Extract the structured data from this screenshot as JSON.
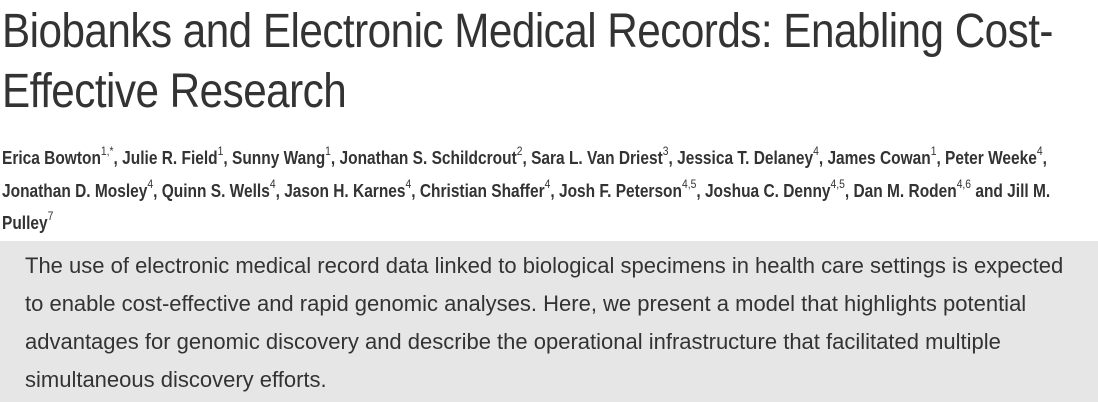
{
  "article": {
    "title": "Biobanks and Electronic Medical Records: Enabling Cost-Effective Research",
    "authors": [
      {
        "name": "Erica Bowton",
        "sup": "1,*"
      },
      {
        "name": "Julie R. Field",
        "sup": "1"
      },
      {
        "name": "Sunny Wang",
        "sup": "1"
      },
      {
        "name": "Jonathan S. Schildcrout",
        "sup": "2"
      },
      {
        "name": "Sara L. Van Driest",
        "sup": "3"
      },
      {
        "name": "Jessica T. Delaney",
        "sup": "4"
      },
      {
        "name": "James Cowan",
        "sup": "1"
      },
      {
        "name": "Peter Weeke",
        "sup": "4"
      },
      {
        "name": "Jonathan D. Mosley",
        "sup": "4"
      },
      {
        "name": "Quinn S. Wells",
        "sup": "4"
      },
      {
        "name": "Jason H. Karnes",
        "sup": "4"
      },
      {
        "name": "Christian Shaffer",
        "sup": "4"
      },
      {
        "name": "Josh F. Peterson",
        "sup": "4,5"
      },
      {
        "name": "Joshua C. Denny",
        "sup": "4,5"
      },
      {
        "name": "Dan M. Roden",
        "sup": "4,6"
      },
      {
        "name": "Jill M. Pulley",
        "sup": "7"
      }
    ],
    "author_separator": ", ",
    "author_final_conjunction": " and ",
    "abstract": "The use of electronic medical record data linked to biological specimens in health care settings is expected to enable cost-effective and rapid genomic analyses. Here, we present a model that highlights potential advantages for genomic discovery and describe the operational infrastructure that facilitated multiple simultaneous discovery efforts."
  },
  "colors": {
    "text": "#333333",
    "abstract_background": "#e6e6e6"
  }
}
